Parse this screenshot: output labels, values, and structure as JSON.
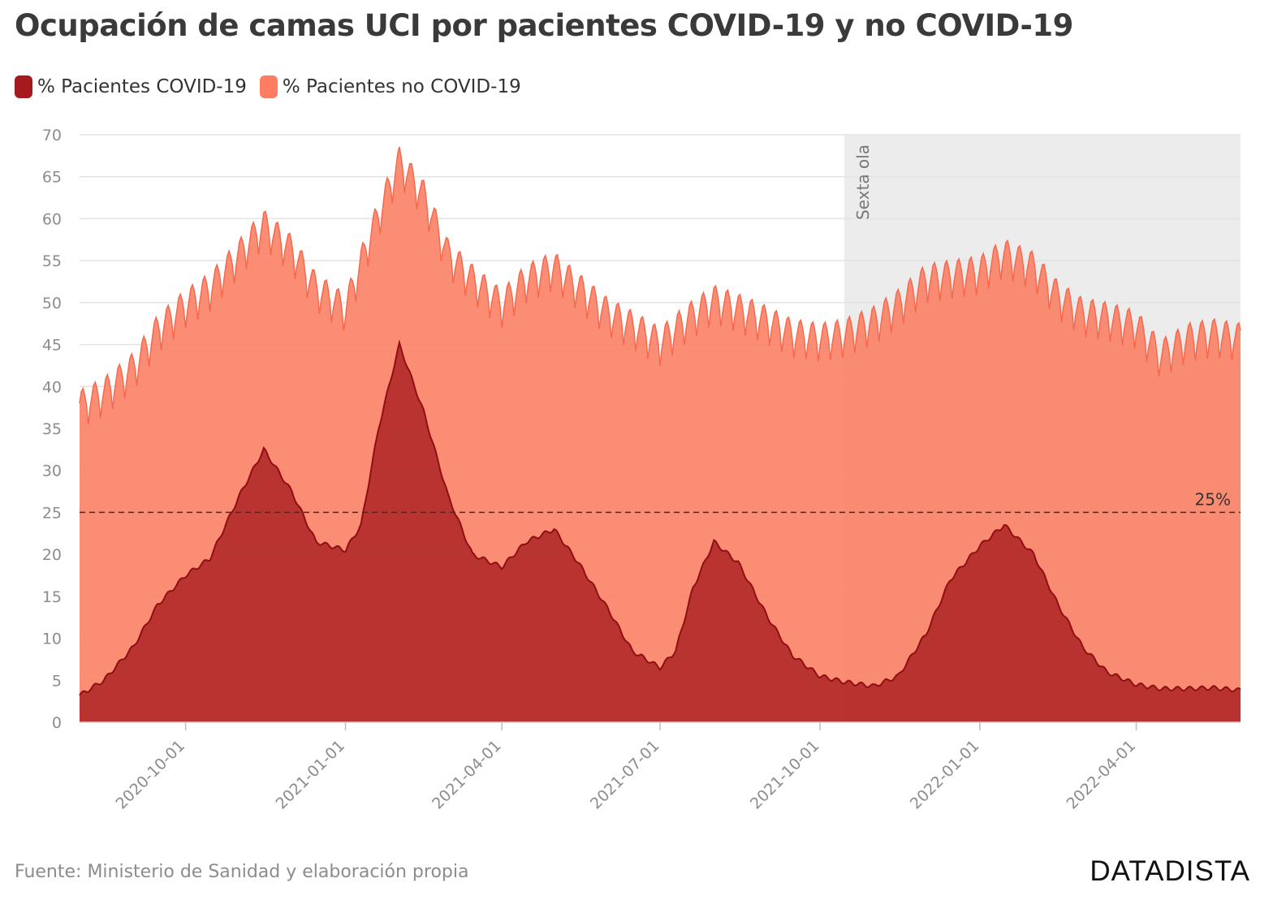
{
  "chart_data": {
    "type": "area",
    "title": "Ocupación de camas UCI por pacientes COVID-19 y no COVID-19",
    "source": "Fuente: Ministerio de Sanidad y elaboración propia",
    "brand": "DATADISTA",
    "ylim": [
      0,
      70
    ],
    "y_ticks": [
      0,
      5,
      10,
      15,
      20,
      25,
      30,
      35,
      40,
      45,
      50,
      55,
      60,
      65,
      70
    ],
    "xlim": [
      "2020-08-01",
      "2022-05-31"
    ],
    "x_ticks": [
      "2020-10-01",
      "2021-01-01",
      "2021-04-01",
      "2021-07-01",
      "2021-10-01",
      "2022-01-01",
      "2022-04-01"
    ],
    "grid": true,
    "legend_position": "top-left",
    "reference_line": {
      "value": 25,
      "label": "25%"
    },
    "shaded_region": {
      "start": "2021-10-15",
      "end": "2022-05-31",
      "label": "Sexta ola"
    },
    "series": [
      {
        "name": "% Pacientes COVID-19",
        "color": "#a51b1d",
        "points": [
          [
            "2020-08-01",
            3.2
          ],
          [
            "2020-08-15",
            5.0
          ],
          [
            "2020-09-01",
            9.0
          ],
          [
            "2020-09-15",
            14.0
          ],
          [
            "2020-10-01",
            17.5
          ],
          [
            "2020-10-15",
            19.5
          ],
          [
            "2020-11-01",
            27.0
          ],
          [
            "2020-11-15",
            32.5
          ],
          [
            "2020-12-01",
            27.5
          ],
          [
            "2020-12-15",
            21.5
          ],
          [
            "2021-01-01",
            20.5
          ],
          [
            "2021-01-10",
            23.5
          ],
          [
            "2021-01-20",
            35.0
          ],
          [
            "2021-02-01",
            45.0
          ],
          [
            "2021-02-15",
            37.0
          ],
          [
            "2021-03-01",
            27.0
          ],
          [
            "2021-03-15",
            20.0
          ],
          [
            "2021-04-01",
            18.5
          ],
          [
            "2021-04-15",
            21.5
          ],
          [
            "2021-05-01",
            23.0
          ],
          [
            "2021-05-15",
            19.0
          ],
          [
            "2021-06-01",
            13.5
          ],
          [
            "2021-06-15",
            8.5
          ],
          [
            "2021-07-01",
            6.5
          ],
          [
            "2021-07-10",
            8.5
          ],
          [
            "2021-07-20",
            16.0
          ],
          [
            "2021-08-01",
            21.5
          ],
          [
            "2021-08-15",
            19.0
          ],
          [
            "2021-09-01",
            12.5
          ],
          [
            "2021-09-15",
            8.0
          ],
          [
            "2021-10-01",
            5.5
          ],
          [
            "2021-10-15",
            4.8
          ],
          [
            "2021-11-01",
            4.3
          ],
          [
            "2021-11-15",
            5.5
          ],
          [
            "2021-12-01",
            10.5
          ],
          [
            "2021-12-15",
            17.0
          ],
          [
            "2022-01-01",
            21.0
          ],
          [
            "2022-01-15",
            23.5
          ],
          [
            "2022-02-01",
            20.0
          ],
          [
            "2022-02-15",
            14.0
          ],
          [
            "2022-03-01",
            9.0
          ],
          [
            "2022-03-15",
            6.0
          ],
          [
            "2022-04-01",
            4.5
          ],
          [
            "2022-04-15",
            4.0
          ],
          [
            "2022-05-01",
            4.0
          ],
          [
            "2022-05-15",
            4.1
          ],
          [
            "2022-05-31",
            3.8
          ]
        ]
      },
      {
        "name": "% Pacientes no COVID-19",
        "color": "#fc7d62",
        "points": [
          [
            "2020-08-01",
            38.0
          ],
          [
            "2020-08-15",
            39.5
          ],
          [
            "2020-09-01",
            42.5
          ],
          [
            "2020-09-15",
            47.0
          ],
          [
            "2020-10-01",
            50.0
          ],
          [
            "2020-10-15",
            52.0
          ],
          [
            "2020-11-01",
            56.0
          ],
          [
            "2020-11-15",
            59.5
          ],
          [
            "2020-12-01",
            56.5
          ],
          [
            "2020-12-15",
            52.0
          ],
          [
            "2021-01-01",
            49.5
          ],
          [
            "2021-01-15",
            58.0
          ],
          [
            "2021-02-01",
            67.0
          ],
          [
            "2021-02-15",
            63.0
          ],
          [
            "2021-03-01",
            56.0
          ],
          [
            "2021-03-15",
            53.0
          ],
          [
            "2021-04-01",
            50.0
          ],
          [
            "2021-04-15",
            53.0
          ],
          [
            "2021-05-01",
            54.5
          ],
          [
            "2021-05-15",
            52.0
          ],
          [
            "2021-06-01",
            49.0
          ],
          [
            "2021-06-15",
            47.5
          ],
          [
            "2021-07-01",
            45.5
          ],
          [
            "2021-07-15",
            48.0
          ],
          [
            "2021-08-01",
            50.5
          ],
          [
            "2021-08-15",
            49.5
          ],
          [
            "2021-09-01",
            48.0
          ],
          [
            "2021-09-15",
            46.5
          ],
          [
            "2021-10-01",
            46.0
          ],
          [
            "2021-10-15",
            46.5
          ],
          [
            "2021-11-01",
            48.0
          ],
          [
            "2021-11-15",
            50.0
          ],
          [
            "2021-12-01",
            53.0
          ],
          [
            "2021-12-15",
            53.5
          ],
          [
            "2022-01-01",
            54.0
          ],
          [
            "2022-01-15",
            56.0
          ],
          [
            "2022-02-01",
            54.5
          ],
          [
            "2022-02-15",
            51.0
          ],
          [
            "2022-03-01",
            49.0
          ],
          [
            "2022-03-15",
            48.5
          ],
          [
            "2022-04-01",
            47.5
          ],
          [
            "2022-04-15",
            44.0
          ],
          [
            "2022-05-01",
            46.0
          ],
          [
            "2022-05-15",
            46.5
          ],
          [
            "2022-05-31",
            46.0
          ]
        ]
      }
    ]
  }
}
